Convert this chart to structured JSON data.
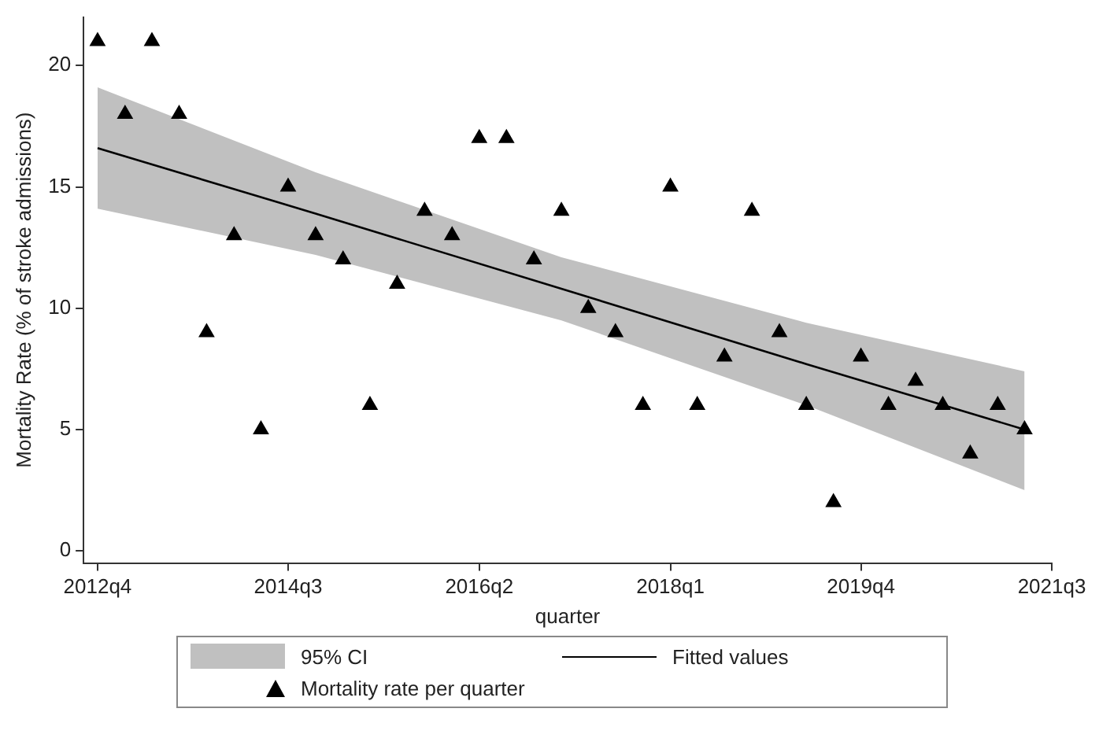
{
  "chart_data": {
    "type": "scatter",
    "xlabel": "quarter",
    "ylabel": "Mortality Rate (% of stroke admissions)",
    "xlim": [
      "2012-08-15",
      "2021-07-01"
    ],
    "xticks": [
      {
        "value": "2012-10",
        "label": "2012q4"
      },
      {
        "value": "2014-07",
        "label": "2014q3"
      },
      {
        "value": "2016-04",
        "label": "2016q2"
      },
      {
        "value": "2018-01",
        "label": "2018q1"
      },
      {
        "value": "2019-10",
        "label": "2019q4"
      },
      {
        "value": "2021-07",
        "label": "2021q3"
      }
    ],
    "ylim": [
      -0.5,
      22
    ],
    "yticks": [
      0,
      5,
      10,
      15,
      20
    ],
    "grid": false,
    "legend": "bottom",
    "annotations": [
      "95% CI"
    ],
    "series": [
      {
        "type": "line",
        "name": "Fitted values",
        "color": "#000000",
        "line_style": "solid",
        "marker": "none",
        "x": [
          "2012-10",
          "2014-10",
          "2017-01",
          "2019-04",
          "2021-04"
        ],
        "values": [
          16.6,
          13.9,
          10.8,
          7.7,
          5.0
        ],
        "lower": [
          14.1,
          12.2,
          9.5,
          6.0,
          2.5
        ],
        "upper": [
          19.1,
          15.6,
          12.1,
          9.4,
          7.4
        ]
      },
      {
        "name": "Mortality rate per quarter",
        "color": "#000000",
        "marker": "triangle",
        "x": [
          "2012-10",
          "2013-01",
          "2013-04",
          "2013-07",
          "2013-10",
          "2014-01",
          "2014-04",
          "2014-07",
          "2014-10",
          "2015-01",
          "2015-04",
          "2015-07",
          "2015-10",
          "2016-01",
          "2016-04",
          "2016-07",
          "2016-10",
          "2017-01",
          "2017-04",
          "2017-07",
          "2017-10",
          "2018-01",
          "2018-04",
          "2018-07",
          "2018-10",
          "2019-01",
          "2019-04",
          "2019-07",
          "2019-10",
          "2020-01",
          "2020-04",
          "2020-07",
          "2020-10",
          "2021-01",
          "2021-04"
        ],
        "values": [
          21,
          18,
          21,
          18,
          9,
          13,
          5,
          15,
          13,
          12,
          6,
          11,
          14,
          13,
          17,
          17,
          12,
          14,
          10,
          9,
          6,
          15,
          6,
          8,
          14,
          9,
          6,
          2,
          8,
          6,
          7,
          6,
          4,
          6,
          5
        ]
      }
    ]
  }
}
